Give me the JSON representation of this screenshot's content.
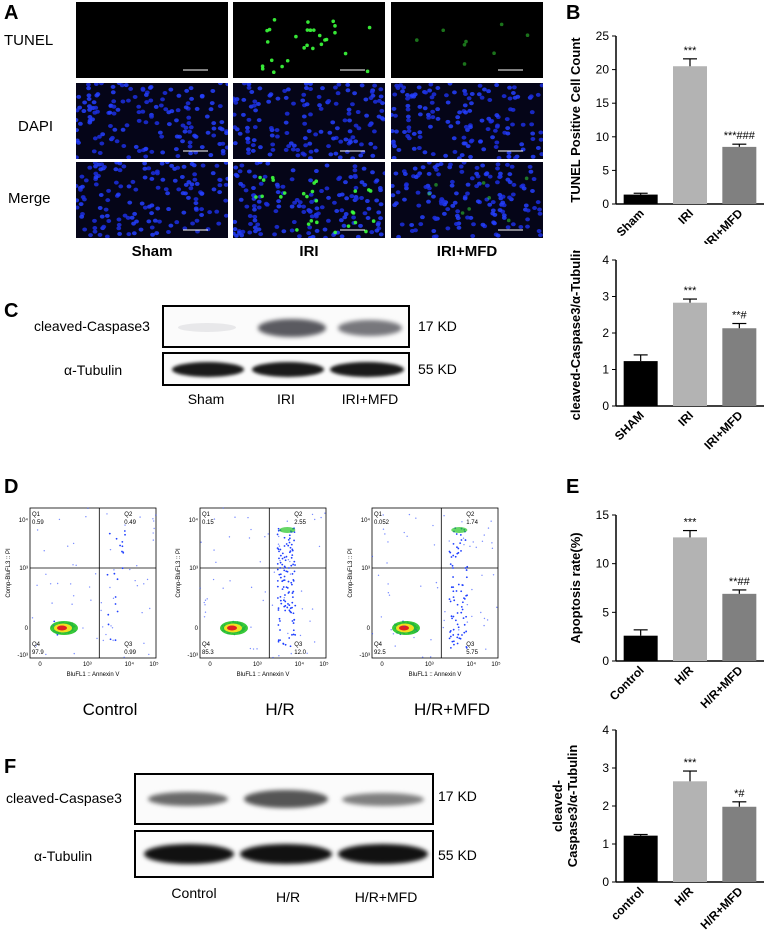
{
  "panelA": {
    "label": "A",
    "rows": [
      "TUNEL",
      "DAPI",
      "Merge"
    ],
    "groups": [
      "Sham",
      "IRI",
      "IRI+MFD"
    ]
  },
  "panelB": {
    "label": "B",
    "chart_data": {
      "type": "bar",
      "ylabel": "TUNEL Positive Cell Count",
      "categories": [
        "Sham",
        "IRI",
        "IRI+MFD"
      ],
      "values": [
        1.4,
        20.5,
        8.5
      ],
      "errors": [
        0.2,
        1.1,
        0.4
      ],
      "colors": [
        "#000000",
        "#b3b3b3",
        "#808080"
      ],
      "ylim": [
        0,
        25
      ],
      "yticks": [
        0,
        5,
        10,
        15,
        20,
        25
      ],
      "annotations": [
        "",
        "***",
        "***###"
      ]
    }
  },
  "panelC": {
    "label": "C",
    "proteins": [
      "cleaved-Caspase3",
      "α-Tubulin"
    ],
    "sizes": [
      "17 KD",
      "55 KD"
    ],
    "lanes": [
      "Sham",
      "IRI",
      "IRI+MFD"
    ],
    "chart_data": {
      "type": "bar",
      "ylabel": "cleaved-Caspase3/α-Tubulin",
      "categories": [
        "SHAM",
        "IRI",
        "IRI+MFD"
      ],
      "values": [
        1.23,
        2.83,
        2.13
      ],
      "errors": [
        0.17,
        0.1,
        0.13
      ],
      "colors": [
        "#000000",
        "#b3b3b3",
        "#808080"
      ],
      "ylim": [
        0,
        4
      ],
      "yticks": [
        0,
        1,
        2,
        3,
        4
      ],
      "annotations": [
        "",
        "***",
        "**#"
      ]
    }
  },
  "panelD": {
    "label": "D",
    "yaxis_label": "Comp-BluFL3 :: PI",
    "xaxis_label": "BluFL1 :: Annexin V",
    "yticks": [
      "10⁴",
      "10³",
      "0",
      "-10³"
    ],
    "xticks": [
      "0",
      "10³",
      "10⁴",
      "10⁵"
    ],
    "plots": [
      {
        "name": "Control",
        "q1": "0.59",
        "q2": "0.49",
        "q3": "0.99",
        "q4": "97.9"
      },
      {
        "name": "H/R",
        "q1": "0.15",
        "q2": "2.55",
        "q3": "12.0",
        "q4": "85.3"
      },
      {
        "name": "H/R+MFD",
        "q1": "0.052",
        "q2": "1.74",
        "q3": "5.75",
        "q4": "92.5"
      }
    ],
    "quadrant_names": [
      "Q1",
      "Q2",
      "Q3",
      "Q4"
    ]
  },
  "panelE": {
    "label": "E",
    "chart_data": {
      "type": "bar",
      "ylabel": "Apoptosis rate(%)",
      "categories": [
        "Control",
        "H/R",
        "H/R+MFD"
      ],
      "values": [
        2.6,
        12.7,
        6.9
      ],
      "errors": [
        0.6,
        0.7,
        0.4
      ],
      "colors": [
        "#000000",
        "#b3b3b3",
        "#808080"
      ],
      "ylim": [
        0,
        15
      ],
      "yticks": [
        0,
        5,
        10,
        15
      ],
      "annotations": [
        "",
        "***",
        "**##"
      ]
    }
  },
  "panelF": {
    "label": "F",
    "proteins": [
      "cleaved-Caspase3",
      "α-Tubulin"
    ],
    "sizes": [
      "17 KD",
      "55 KD"
    ],
    "lanes": [
      "Control",
      "H/R",
      "H/R+MFD"
    ],
    "chart_data": {
      "type": "bar",
      "ylabel": "cleaved-Caspase3/α-Tubulin",
      "ylabel_lines": [
        "cleaved-",
        "Caspase3/α-Tubulin"
      ],
      "categories": [
        "control",
        "H/R",
        "H/R+MFD"
      ],
      "values": [
        1.22,
        2.65,
        1.98
      ],
      "errors": [
        0.03,
        0.27,
        0.13
      ],
      "colors": [
        "#000000",
        "#b3b3b3",
        "#808080"
      ],
      "ylim": [
        0,
        4
      ],
      "yticks": [
        0,
        1,
        2,
        3,
        4
      ],
      "annotations": [
        "",
        "***",
        "*#"
      ]
    }
  }
}
